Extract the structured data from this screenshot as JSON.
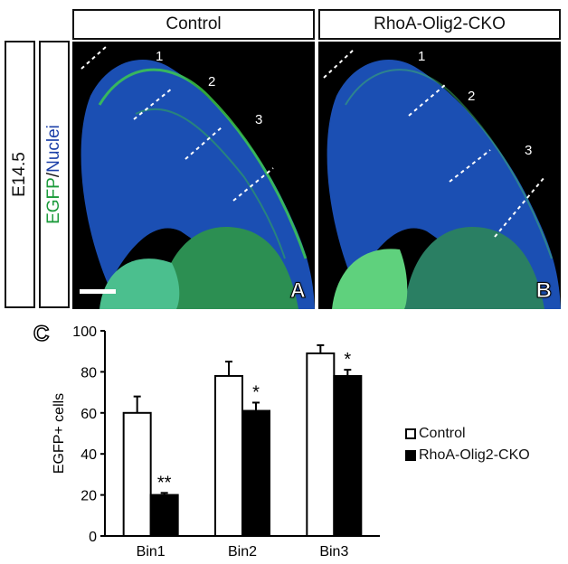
{
  "headers": {
    "control": "Control",
    "cko": "RhoA-Olig2-CKO"
  },
  "side_labels": {
    "age": "E14.5",
    "stain_green": "EGFP",
    "stain_sep": "/",
    "stain_blue": "Nuclei"
  },
  "panels": [
    {
      "letter": "A",
      "bins": [
        "1",
        "2",
        "3"
      ]
    },
    {
      "letter": "B",
      "bins": [
        "1",
        "2",
        "3"
      ]
    }
  ],
  "panel_c_letter": "C",
  "colors": {
    "nuclei": "#1b4fb3",
    "egfp": "#3fd04a",
    "bar_cko": "#000000",
    "bar_control": "#ffffff"
  },
  "chart_data": {
    "type": "bar",
    "categories": [
      "Bin1",
      "Bin2",
      "Bin3"
    ],
    "ylabel": "EGFP+ cells",
    "ylim": [
      0,
      100
    ],
    "yticks": [
      0,
      20,
      40,
      60,
      80,
      100
    ],
    "series": [
      {
        "name": "Control",
        "values": [
          60,
          78,
          89
        ],
        "errors": [
          8,
          7,
          4
        ],
        "color": "#ffffff"
      },
      {
        "name": "RhoA-Olig2-CKO",
        "values": [
          20,
          61,
          78
        ],
        "errors": [
          1,
          4,
          3
        ],
        "color": "#000000"
      }
    ],
    "significance": [
      "**",
      "*",
      "*"
    ],
    "legend": [
      "Control",
      "RhoA-Olig2-CKO"
    ]
  }
}
